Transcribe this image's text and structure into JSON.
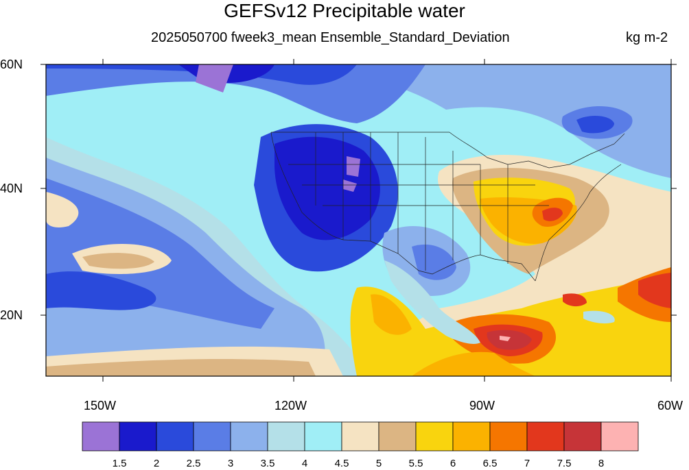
{
  "title": "GEFSv12 Precipitable water",
  "subtitle": "2025050700 fweek3_mean Ensemble_Standard_Deviation",
  "units": "kg m-2",
  "map": {
    "lat_labels": [
      "60N",
      "40N",
      "20N"
    ],
    "lon_labels": [
      "150W",
      "120W",
      "90W",
      "60W"
    ],
    "lat_range": [
      10,
      60
    ],
    "lon_range": [
      -160,
      -60
    ]
  },
  "colorbar": {
    "levels": [
      "1.5",
      "2",
      "2.5",
      "3",
      "3.5",
      "4",
      "4.5",
      "5",
      "5.5",
      "6",
      "6.5",
      "7",
      "7.5",
      "8"
    ],
    "colors": [
      "#9b73d6",
      "#1a1acc",
      "#2a4adb",
      "#5a7de6",
      "#8cb1ec",
      "#b4e0e8",
      "#a0eef6",
      "#f5e3c2",
      "#dcb583",
      "#f9d40e",
      "#fbb200",
      "#f57600",
      "#e2371d",
      "#c63438",
      "#fdb2b2"
    ]
  },
  "colors": {
    "ocean_background": "#a0eef6",
    "mountain_west_low": "#2a4adb",
    "southeast_high": "#fbb200"
  }
}
